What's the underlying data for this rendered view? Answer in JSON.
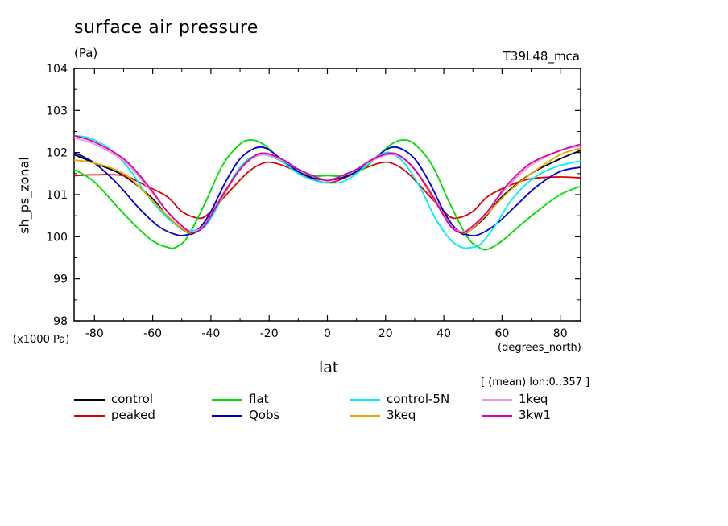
{
  "header": {
    "title": "surface air pressure",
    "units": "(Pa)",
    "experiment": "T39L48_mca",
    "ylabel": "sh_ps_zonal",
    "yscale_note": "(x1000 Pa)",
    "xunits": "(degrees_north)",
    "xlabel": "lat",
    "mean_note": "[ (mean) lon:0..357 ]"
  },
  "chart_data": {
    "type": "line",
    "title": "surface air pressure",
    "xlabel": "lat",
    "ylabel": "sh_ps_zonal",
    "xlim": [
      -87,
      87
    ],
    "ylim": [
      98,
      104
    ],
    "xticks": [
      -80,
      -60,
      -40,
      -20,
      0,
      20,
      40,
      60,
      80
    ],
    "yticks": [
      98,
      99,
      100,
      101,
      102,
      103,
      104
    ],
    "grid": false,
    "legend": "bottom",
    "series": [
      {
        "name": "control",
        "color": "#000000",
        "x": [
          -87,
          -80,
          -70,
          -60,
          -54,
          -48,
          -46,
          -42,
          -36,
          -30,
          -25,
          -20,
          -15,
          -10,
          -5,
          0,
          5,
          10,
          15,
          20,
          25,
          30,
          36,
          42,
          46,
          48,
          54,
          60,
          70,
          80,
          87
        ],
        "y": [
          101.95,
          101.75,
          101.45,
          100.9,
          100.4,
          100.1,
          100.08,
          100.3,
          101.0,
          101.6,
          101.9,
          101.95,
          101.8,
          101.6,
          101.45,
          101.35,
          101.45,
          101.6,
          101.8,
          101.95,
          101.9,
          101.6,
          101.0,
          100.3,
          100.08,
          100.1,
          100.45,
          100.95,
          101.5,
          101.85,
          102.05
        ]
      },
      {
        "name": "peaked",
        "color": "#dd0000",
        "x": [
          -87,
          -80,
          -70,
          -62,
          -55,
          -50,
          -45,
          -42,
          -38,
          -32,
          -27,
          -22,
          -18,
          -12,
          -6,
          0,
          6,
          12,
          18,
          22,
          27,
          32,
          38,
          42,
          45,
          50,
          55,
          62,
          70,
          80,
          87
        ],
        "y": [
          101.45,
          101.47,
          101.45,
          101.2,
          100.95,
          100.6,
          100.45,
          100.48,
          100.75,
          101.2,
          101.55,
          101.75,
          101.75,
          101.6,
          101.4,
          101.28,
          101.4,
          101.6,
          101.75,
          101.75,
          101.55,
          101.2,
          100.75,
          100.48,
          100.45,
          100.6,
          100.95,
          101.2,
          101.38,
          101.42,
          101.4
        ]
      },
      {
        "name": "flat",
        "color": "#00dd00",
        "x": [
          -87,
          -80,
          -72,
          -65,
          -60,
          -55,
          -52,
          -48,
          -42,
          -36,
          -30,
          -26,
          -22,
          -17,
          -12,
          -6,
          0,
          6,
          12,
          17,
          22,
          26,
          30,
          36,
          42,
          48,
          52,
          55,
          60,
          65,
          72,
          80,
          87
        ],
        "y": [
          101.6,
          101.3,
          100.7,
          100.2,
          99.9,
          99.75,
          99.75,
          100.0,
          100.8,
          101.7,
          102.2,
          102.3,
          102.2,
          101.9,
          101.6,
          101.45,
          101.45,
          101.45,
          101.6,
          101.9,
          102.2,
          102.3,
          102.2,
          101.7,
          100.8,
          100.0,
          99.75,
          99.7,
          99.9,
          100.2,
          100.6,
          101.0,
          101.2
        ]
      },
      {
        "name": "Qobs",
        "color": "#0000cc",
        "x": [
          -87,
          -80,
          -72,
          -65,
          -58,
          -52,
          -48,
          -44,
          -40,
          -35,
          -30,
          -25,
          -21,
          -16,
          -10,
          -5,
          0,
          5,
          10,
          16,
          21,
          25,
          30,
          35,
          40,
          44,
          48,
          52,
          58,
          65,
          72,
          80,
          87
        ],
        "y": [
          102.0,
          101.75,
          101.25,
          100.7,
          100.25,
          100.05,
          100.05,
          100.2,
          100.6,
          101.3,
          101.85,
          102.1,
          102.1,
          101.85,
          101.55,
          101.4,
          101.35,
          101.4,
          101.55,
          101.85,
          102.1,
          102.1,
          101.85,
          101.3,
          100.6,
          100.2,
          100.05,
          100.05,
          100.3,
          100.75,
          101.2,
          101.55,
          101.65
        ]
      },
      {
        "name": "control-5N",
        "color": "#00eeee",
        "x": [
          -87,
          -82,
          -75,
          -68,
          -62,
          -55,
          -50,
          -46,
          -42,
          -37,
          -32,
          -27,
          -22,
          -16,
          -10,
          -5,
          0,
          5,
          10,
          16,
          20,
          23,
          27,
          32,
          37,
          42,
          46,
          50,
          53,
          58,
          63,
          70,
          78,
          87
        ],
        "y": [
          102.4,
          102.35,
          102.1,
          101.6,
          101.0,
          100.45,
          100.2,
          100.15,
          100.25,
          100.8,
          101.45,
          101.85,
          101.95,
          101.8,
          101.5,
          101.35,
          101.28,
          101.3,
          101.5,
          101.85,
          102.0,
          101.95,
          101.7,
          101.15,
          100.45,
          99.95,
          99.75,
          99.75,
          99.85,
          100.3,
          100.85,
          101.35,
          101.65,
          101.8
        ]
      },
      {
        "name": "3keq",
        "color": "#e8a800",
        "x": [
          -87,
          -80,
          -70,
          -62,
          -55,
          -49,
          -46,
          -42,
          -36,
          -30,
          -25,
          -21,
          -15,
          -10,
          -5,
          0,
          5,
          10,
          15,
          21,
          25,
          30,
          36,
          42,
          46,
          49,
          55,
          62,
          70,
          80,
          87
        ],
        "y": [
          101.82,
          101.75,
          101.5,
          101.0,
          100.5,
          100.15,
          100.1,
          100.3,
          100.95,
          101.6,
          101.9,
          101.95,
          101.8,
          101.6,
          101.45,
          101.35,
          101.45,
          101.6,
          101.8,
          101.95,
          101.9,
          101.6,
          100.95,
          100.3,
          100.1,
          100.15,
          100.55,
          101.05,
          101.5,
          101.95,
          102.1
        ]
      },
      {
        "name": "1keq",
        "color": "#ee99dd",
        "x": [
          -87,
          -80,
          -70,
          -62,
          -55,
          -49,
          -46,
          -42,
          -36,
          -30,
          -25,
          -21,
          -15,
          -10,
          -5,
          0,
          5,
          10,
          15,
          21,
          25,
          30,
          36,
          42,
          46,
          49,
          55,
          62,
          70,
          80,
          87
        ],
        "y": [
          102.35,
          102.2,
          101.8,
          101.2,
          100.6,
          100.2,
          100.12,
          100.3,
          101.0,
          101.6,
          101.9,
          101.95,
          101.8,
          101.6,
          101.45,
          101.35,
          101.45,
          101.6,
          101.8,
          101.95,
          101.9,
          101.6,
          101.0,
          100.3,
          100.12,
          100.2,
          100.6,
          101.2,
          101.7,
          102.05,
          102.15
        ]
      },
      {
        "name": "3kw1",
        "color": "#dd00aa",
        "x": [
          -87,
          -80,
          -70,
          -62,
          -55,
          -49,
          -46,
          -42,
          -36,
          -30,
          -25,
          -21,
          -15,
          -10,
          -5,
          0,
          5,
          10,
          15,
          21,
          25,
          30,
          36,
          42,
          46,
          49,
          55,
          62,
          70,
          80,
          87
        ],
        "y": [
          102.4,
          102.25,
          101.85,
          101.25,
          100.6,
          100.2,
          100.1,
          100.28,
          100.98,
          101.6,
          101.92,
          101.98,
          101.82,
          101.6,
          101.45,
          101.33,
          101.45,
          101.6,
          101.82,
          101.98,
          101.92,
          101.6,
          100.98,
          100.28,
          100.1,
          100.2,
          100.6,
          101.25,
          101.75,
          102.05,
          102.2
        ]
      }
    ]
  }
}
